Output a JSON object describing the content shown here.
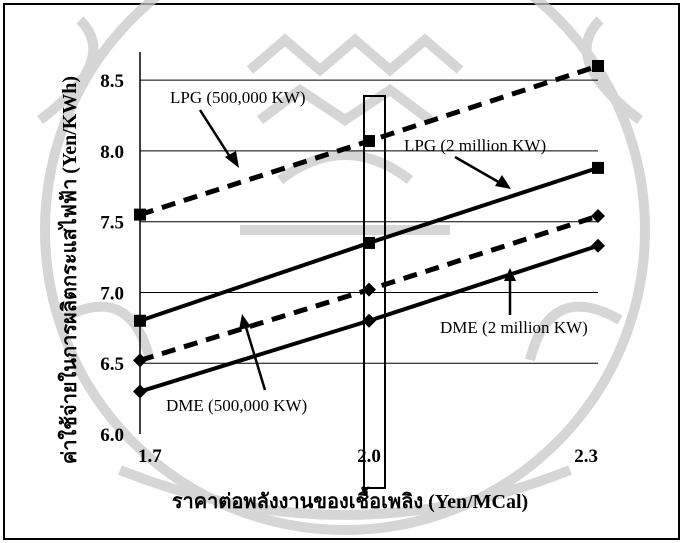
{
  "chart_data": {
    "type": "line",
    "xlabel": "ราคาต่อพลังงานของเชื้อเพลิง (Yen/MCal)",
    "ylabel": "ค่าใช้จ่ายในการผลิตกระแสไฟฟ้า (Yen/KWh)",
    "x_ticks": [
      "1.7",
      "2.0",
      "2.3"
    ],
    "y_ticks": [
      "6.0",
      "6.5",
      "7.0",
      "7.5",
      "8.0",
      "8.5"
    ],
    "xlim": [
      1.7,
      2.3
    ],
    "ylim": [
      6.0,
      8.6
    ],
    "grid": "horizontal",
    "highlight_x": 2.0,
    "series": [
      {
        "name": "LPG (500,000 KW)",
        "style": "dashed",
        "marker": "square",
        "color": "#000000",
        "x": [
          1.7,
          2.0,
          2.3
        ],
        "values": [
          7.55,
          8.07,
          8.6
        ]
      },
      {
        "name": "LPG (2 million KW)",
        "style": "solid",
        "marker": "square",
        "color": "#000000",
        "x": [
          1.7,
          2.0,
          2.3
        ],
        "values": [
          6.8,
          7.35,
          7.88
        ]
      },
      {
        "name": "DME (500,000 KW)",
        "style": "dashed",
        "marker": "diamond",
        "color": "#000000",
        "x": [
          1.7,
          2.0,
          2.3
        ],
        "values": [
          6.52,
          7.02,
          7.54
        ]
      },
      {
        "name": "DME (2 million KW)",
        "style": "solid",
        "marker": "diamond",
        "color": "#000000",
        "x": [
          1.7,
          2.0,
          2.3
        ],
        "values": [
          6.3,
          6.8,
          7.33
        ]
      }
    ]
  }
}
